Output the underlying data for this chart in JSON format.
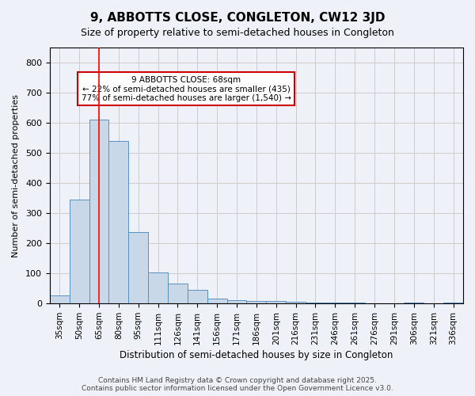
{
  "title": "9, ABBOTTS CLOSE, CONGLETON, CW12 3JD",
  "subtitle": "Size of property relative to semi-detached houses in Congleton",
  "xlabel": "Distribution of semi-detached houses by size in Congleton",
  "ylabel": "Number of semi-detached properties",
  "categories": [
    "35sqm",
    "50sqm",
    "65sqm",
    "80sqm",
    "95sqm",
    "111sqm",
    "126sqm",
    "141sqm",
    "156sqm",
    "171sqm",
    "186sqm",
    "201sqm",
    "216sqm",
    "231sqm",
    "246sqm",
    "261sqm",
    "276sqm",
    "291sqm",
    "306sqm",
    "321sqm",
    "336sqm"
  ],
  "values": [
    27,
    345,
    610,
    540,
    237,
    103,
    67,
    45,
    17,
    10,
    9,
    9,
    6,
    4,
    4,
    2,
    1,
    0,
    2,
    0,
    2
  ],
  "bar_color": "#c8d8e8",
  "bar_edge_color": "#5a90c0",
  "grid_color": "#cccccc",
  "bg_color": "#eef2f8",
  "red_line_x": 2,
  "annotation_text": "9 ABBOTTS CLOSE: 68sqm\n← 22% of semi-detached houses are smaller (435)\n77% of semi-detached houses are larger (1,540) →",
  "annotation_box_color": "#ffffff",
  "annotation_box_edge": "#cc0000",
  "footnote": "Contains HM Land Registry data © Crown copyright and database right 2025.\nContains public sector information licensed under the Open Government Licence v3.0.",
  "ylim": [
    0,
    850
  ],
  "yticks": [
    0,
    100,
    200,
    300,
    400,
    500,
    600,
    700,
    800
  ]
}
